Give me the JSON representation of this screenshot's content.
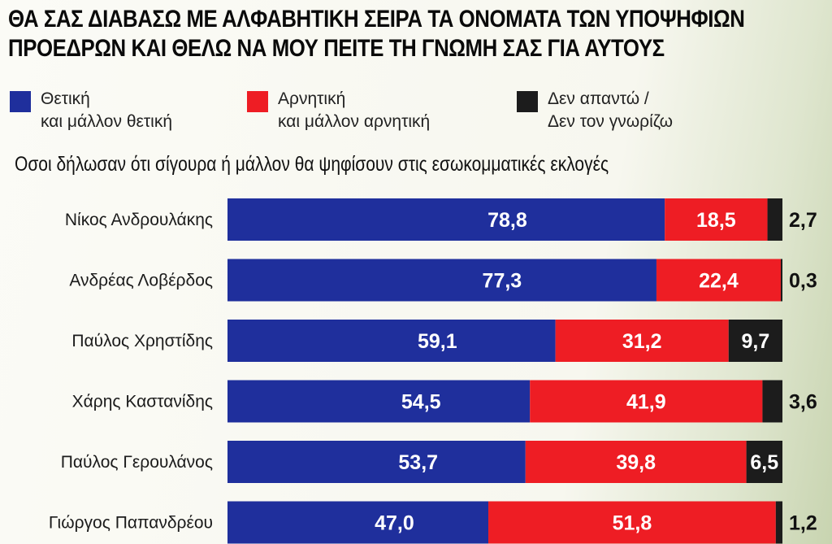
{
  "title_lines": [
    "ΘΑ ΣΑΣ ΔΙΑΒΑΣΩ ΜΕ ΑΛΦΑΒΗΤΙΚΗ ΣΕΙΡΑ ΤΑ ΟΝΟΜΑΤΑ ΤΩΝ ΥΠΟΨΗΦΙΩΝ",
    "ΠΡΟΕΔΡΩΝ ΚΑΙ ΘΕΛΩ ΝΑ ΜΟΥ ΠΕΙΤΕ ΤΗ ΓΝΩΜΗ ΣΑΣ ΓΙΑ ΑΥΤΟΥΣ"
  ],
  "legend": [
    {
      "lines": [
        "Θετική",
        "και μάλλον θετική"
      ],
      "color": "#1f2f9c"
    },
    {
      "lines": [
        "Αρνητική",
        "και μάλλον αρνητική"
      ],
      "color": "#ee1d24"
    },
    {
      "lines": [
        "Δεν απαντώ /",
        "Δεν τον γνωρίζω"
      ],
      "color": "#1c1c1c"
    }
  ],
  "subtitle": "Οσοι δήλωσαν ότι σίγουρα ή μάλλον θα ψηφίσουν στις εσωκομματικές εκλογές",
  "chart_data": {
    "type": "bar",
    "orientation": "horizontal",
    "stacked": true,
    "categories": [
      "Νίκος Ανδρουλάκης",
      "Ανδρέας Λοβέρδος",
      "Παύλος Χρηστίδης",
      "Χάρης Καστανίδης",
      "Παύλος Γερουλάνος",
      "Γιώργος Παπανδρέου"
    ],
    "series": [
      {
        "name": "Θετική και μάλλον θετική",
        "color": "#1f2f9c",
        "values": [
          78.8,
          77.3,
          59.1,
          54.5,
          53.7,
          47.0
        ],
        "labels": [
          "78,8",
          "77,3",
          "59,1",
          "54,5",
          "53,7",
          "47,0"
        ]
      },
      {
        "name": "Αρνητική και μάλλον αρνητική",
        "color": "#ee1d24",
        "values": [
          18.5,
          22.4,
          31.2,
          41.9,
          39.8,
          51.8
        ],
        "labels": [
          "18,5",
          "22,4",
          "31,2",
          "41,9",
          "39,8",
          "51,8"
        ]
      },
      {
        "name": "Δεν απαντώ / Δεν τον γνωρίζω",
        "color": "#1c1c1c",
        "values": [
          2.7,
          0.3,
          9.7,
          3.6,
          6.5,
          1.2
        ],
        "labels": [
          "2,7",
          "0,3",
          "9,7",
          "3,6",
          "6,5",
          "1,2"
        ]
      }
    ],
    "xlim": [
      0,
      100
    ],
    "grid": false,
    "legend_position": "top"
  }
}
